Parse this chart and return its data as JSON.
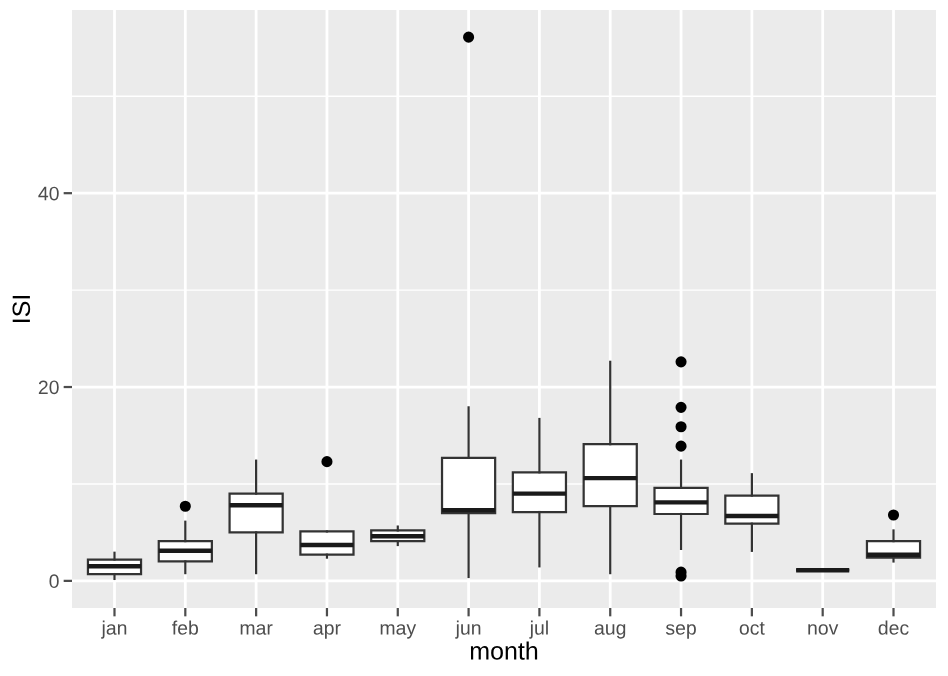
{
  "chart_data": {
    "type": "box",
    "xlabel": "month",
    "ylabel": "ISI",
    "categories": [
      "jan",
      "feb",
      "mar",
      "apr",
      "may",
      "jun",
      "jul",
      "aug",
      "sep",
      "oct",
      "nov",
      "dec"
    ],
    "boxes": [
      {
        "low": 0.2,
        "q1": 0.7,
        "median": 1.5,
        "q3": 2.2,
        "high": 2.9
      },
      {
        "low": 0.8,
        "q1": 2.0,
        "median": 3.1,
        "q3": 4.1,
        "high": 6.1,
        "outliers": [
          7.7
        ]
      },
      {
        "low": 0.8,
        "q1": 5.0,
        "median": 7.8,
        "q3": 9.0,
        "high": 12.4
      },
      {
        "low": 2.4,
        "q1": 2.7,
        "median": 3.7,
        "q3": 5.1,
        "high": 5.1,
        "outliers": [
          12.3
        ]
      },
      {
        "low": 3.7,
        "q1": 4.1,
        "median": 4.6,
        "q3": 5.2,
        "high": 5.6
      },
      {
        "low": 0.4,
        "q1": 7.0,
        "median": 7.3,
        "q3": 12.7,
        "high": 17.9,
        "outliers": [
          56.1
        ]
      },
      {
        "low": 1.5,
        "q1": 7.1,
        "median": 9.0,
        "q3": 11.2,
        "high": 16.7
      },
      {
        "low": 0.8,
        "q1": 7.7,
        "median": 10.6,
        "q3": 14.1,
        "high": 22.6
      },
      {
        "low": 3.3,
        "q1": 6.9,
        "median": 8.1,
        "q3": 9.6,
        "high": 12.4,
        "outliers": [
          22.6,
          17.9,
          15.9,
          13.9,
          0.9,
          0.5
        ]
      },
      {
        "low": 3.1,
        "q1": 5.9,
        "median": 6.7,
        "q3": 8.8,
        "high": 11.0
      },
      {
        "low": 1.1,
        "q1": 1.1,
        "median": 1.1,
        "q3": 1.1,
        "high": 1.1
      },
      {
        "low": 2.0,
        "q1": 2.4,
        "median": 2.7,
        "q3": 4.1,
        "high": 5.2,
        "outliers": [
          6.8
        ]
      }
    ],
    "ylim": [
      -2.8,
      58.9
    ],
    "yticks": [
      0,
      20,
      40
    ],
    "grid": true
  }
}
